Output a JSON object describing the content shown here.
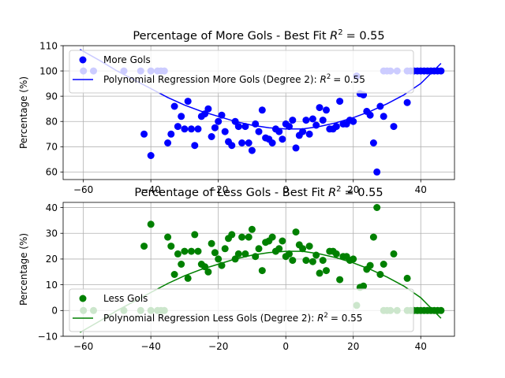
{
  "chart_data": [
    {
      "type": "scatter",
      "title": "Percentage of More Gols - Best Fit R² = 0.55",
      "title_main": "Percentage of More Gols - Best Fit ",
      "title_r2": "= 0.55",
      "xlabel": "",
      "ylabel": "Percentage (%)",
      "xlim": [
        -66,
        50
      ],
      "ylim": [
        57,
        110
      ],
      "xticks": [
        -60,
        -40,
        -20,
        0,
        20,
        40
      ],
      "yticks": [
        60,
        70,
        80,
        90,
        100,
        110
      ],
      "xtick_labels": [
        "−60",
        "−40",
        "−20",
        "0",
        "20",
        "40"
      ],
      "ytick_labels": [
        "60",
        "70",
        "80",
        "90",
        "100",
        "110"
      ],
      "grid": true,
      "legend_position": "top-left",
      "series": [
        {
          "name": "More Gols",
          "kind": "points",
          "color": "#0000ff",
          "points": [
            [
              -60,
              100
            ],
            [
              -57,
              100
            ],
            [
              -48,
              100
            ],
            [
              -43,
              100
            ],
            [
              -40,
              100
            ],
            [
              -38,
              100
            ],
            [
              -37,
              100
            ],
            [
              -36,
              100
            ],
            [
              -42,
              75
            ],
            [
              -40,
              66.5
            ],
            [
              -35,
              71.5
            ],
            [
              -34,
              75
            ],
            [
              -33,
              86
            ],
            [
              -32,
              78
            ],
            [
              -31,
              82
            ],
            [
              -30,
              77
            ],
            [
              -29,
              88
            ],
            [
              -28,
              77
            ],
            [
              -27,
              70.5
            ],
            [
              -26,
              77
            ],
            [
              -25,
              82
            ],
            [
              -24,
              83
            ],
            [
              -23,
              85
            ],
            [
              -22,
              74
            ],
            [
              -21,
              77.5
            ],
            [
              -20,
              80
            ],
            [
              -19,
              82.5
            ],
            [
              -18,
              76
            ],
            [
              -17,
              72
            ],
            [
              -16,
              70.5
            ],
            [
              -15,
              80
            ],
            [
              -14,
              78
            ],
            [
              -13,
              71.5
            ],
            [
              -12,
              78
            ],
            [
              -11,
              71.5
            ],
            [
              -10,
              68.5
            ],
            [
              -9,
              79
            ],
            [
              -8,
              76
            ],
            [
              -7,
              84.5
            ],
            [
              -6,
              73.5
            ],
            [
              -5,
              73
            ],
            [
              -4,
              71.5
            ],
            [
              -3,
              77
            ],
            [
              -2,
              76
            ],
            [
              -1,
              73
            ],
            [
              0,
              79
            ],
            [
              1,
              78
            ],
            [
              2,
              80.5
            ],
            [
              3,
              69.5
            ],
            [
              4,
              74.5
            ],
            [
              5,
              76
            ],
            [
              6,
              80.5
            ],
            [
              7,
              75
            ],
            [
              8,
              81
            ],
            [
              9,
              78.5
            ],
            [
              10,
              85.5
            ],
            [
              11,
              80.5
            ],
            [
              12,
              84.5
            ],
            [
              13,
              77
            ],
            [
              14,
              77
            ],
            [
              15,
              78
            ],
            [
              16,
              88
            ],
            [
              17,
              79
            ],
            [
              18,
              79
            ],
            [
              19,
              80.5
            ],
            [
              20,
              80
            ],
            [
              21,
              98
            ],
            [
              22,
              91
            ],
            [
              23,
              90.5
            ],
            [
              24,
              84
            ],
            [
              25,
              82.5
            ],
            [
              26,
              71.5
            ],
            [
              27,
              60
            ],
            [
              28,
              86
            ],
            [
              29,
              82
            ],
            [
              29,
              100
            ],
            [
              30,
              100
            ],
            [
              31,
              100
            ],
            [
              32,
              78
            ],
            [
              33,
              100
            ],
            [
              36,
              87.5
            ],
            [
              36,
              100
            ],
            [
              37,
              100
            ],
            [
              38,
              100
            ],
            [
              39,
              100
            ],
            [
              40,
              100
            ],
            [
              41,
              100
            ],
            [
              42,
              100
            ],
            [
              43,
              100
            ],
            [
              44,
              100
            ],
            [
              45,
              100
            ],
            [
              46,
              100
            ]
          ]
        },
        {
          "name": "Polynomial Regression More Gols (Degree 2): R² = 0.55",
          "name_main": "Polynomial Regression More Gols (Degree 2): ",
          "name_r2": "= 0.55",
          "kind": "line",
          "color": "#0000ff",
          "x": [
            -61,
            -55,
            -50,
            -45,
            -40,
            -35,
            -30,
            -25,
            -20,
            -15,
            -10,
            -5,
            0,
            5,
            10,
            15,
            20,
            25,
            30,
            35,
            40,
            46
          ],
          "y": [
            108.5,
            104,
            100,
            96.5,
            93,
            89.5,
            86.5,
            84,
            82,
            80,
            78.5,
            77.5,
            77,
            77,
            78,
            79.5,
            81.5,
            84,
            87,
            90.5,
            95,
            103
          ]
        }
      ]
    },
    {
      "type": "scatter",
      "title": "Percentage of Less Gols - Best Fit R² = 0.55",
      "title_main": "Percentage of Less Gols - Best Fit ",
      "title_r2": "= 0.55",
      "xlabel": "",
      "ylabel": "Percentage (%)",
      "xlim": [
        -66,
        50
      ],
      "ylim": [
        -10,
        42
      ],
      "xticks": [
        -60,
        -40,
        -20,
        0,
        20,
        40
      ],
      "yticks": [
        -10,
        0,
        10,
        20,
        30,
        40
      ],
      "xtick_labels": [
        "−60",
        "−40",
        "−20",
        "0",
        "20",
        "40"
      ],
      "ytick_labels": [
        "−10",
        "0",
        "10",
        "20",
        "30",
        "40"
      ],
      "grid": true,
      "legend_position": "bottom-left",
      "series": [
        {
          "name": "Less Gols",
          "kind": "points",
          "color": "#008000",
          "points": [
            [
              -60,
              0
            ],
            [
              -57,
              0
            ],
            [
              -48,
              0
            ],
            [
              -43,
              0
            ],
            [
              -40,
              0
            ],
            [
              -38,
              0
            ],
            [
              -37,
              0
            ],
            [
              -36,
              0
            ],
            [
              -42,
              25
            ],
            [
              -40,
              33.5
            ],
            [
              -35,
              28.5
            ],
            [
              -34,
              25
            ],
            [
              -33,
              14
            ],
            [
              -32,
              22
            ],
            [
              -31,
              18
            ],
            [
              -30,
              23
            ],
            [
              -29,
              12.5
            ],
            [
              -28,
              23
            ],
            [
              -27,
              29.5
            ],
            [
              -26,
              23
            ],
            [
              -25,
              18
            ],
            [
              -24,
              17
            ],
            [
              -23,
              15
            ],
            [
              -22,
              26
            ],
            [
              -21,
              22.5
            ],
            [
              -20,
              20
            ],
            [
              -19,
              17.5
            ],
            [
              -18,
              24
            ],
            [
              -17,
              28
            ],
            [
              -16,
              29.5
            ],
            [
              -15,
              20
            ],
            [
              -14,
              22
            ],
            [
              -13,
              28.5
            ],
            [
              -12,
              22
            ],
            [
              -11,
              28.5
            ],
            [
              -10,
              31.5
            ],
            [
              -9,
              21
            ],
            [
              -8,
              24
            ],
            [
              -7,
              15.5
            ],
            [
              -6,
              26.5
            ],
            [
              -5,
              27
            ],
            [
              -4,
              28.5
            ],
            [
              -3,
              23
            ],
            [
              -2,
              24
            ],
            [
              -1,
              27
            ],
            [
              0,
              21
            ],
            [
              1,
              22
            ],
            [
              2,
              19.5
            ],
            [
              3,
              30.5
            ],
            [
              4,
              25.5
            ],
            [
              5,
              24
            ],
            [
              6,
              19.5
            ],
            [
              7,
              25
            ],
            [
              8,
              19
            ],
            [
              9,
              21.5
            ],
            [
              10,
              14.5
            ],
            [
              11,
              19.5
            ],
            [
              12,
              15.5
            ],
            [
              13,
              23
            ],
            [
              14,
              23
            ],
            [
              15,
              22
            ],
            [
              16,
              12
            ],
            [
              17,
              21
            ],
            [
              18,
              21
            ],
            [
              19,
              19.5
            ],
            [
              20,
              20
            ],
            [
              21,
              2
            ],
            [
              22,
              9
            ],
            [
              23,
              9.5
            ],
            [
              24,
              16
            ],
            [
              25,
              17.5
            ],
            [
              26,
              28.5
            ],
            [
              27,
              40
            ],
            [
              28,
              14
            ],
            [
              29,
              18
            ],
            [
              29,
              0
            ],
            [
              30,
              0
            ],
            [
              31,
              0
            ],
            [
              32,
              22
            ],
            [
              33,
              0
            ],
            [
              36,
              12.5
            ],
            [
              36,
              0
            ],
            [
              37,
              0
            ],
            [
              38,
              0
            ],
            [
              39,
              0
            ],
            [
              40,
              0
            ],
            [
              41,
              0
            ],
            [
              42,
              0
            ],
            [
              43,
              0
            ],
            [
              44,
              0
            ],
            [
              45,
              0
            ],
            [
              46,
              0
            ]
          ]
        },
        {
          "name": "Polynomial Regression Less Gols (Degree 2): R² = 0.55",
          "name_main": "Polynomial Regression Less Gols (Degree 2): ",
          "name_r2": "= 0.55",
          "kind": "line",
          "color": "#008000",
          "x": [
            -61,
            -55,
            -50,
            -45,
            -40,
            -35,
            -30,
            -25,
            -20,
            -15,
            -10,
            -5,
            0,
            5,
            10,
            15,
            20,
            25,
            30,
            35,
            40,
            46
          ],
          "y": [
            -8.5,
            -4,
            0,
            3.5,
            7,
            10.5,
            13.5,
            16,
            18,
            20,
            21.5,
            22.5,
            23,
            23,
            22,
            20.5,
            18.5,
            16,
            13,
            9.5,
            5,
            -3
          ]
        }
      ]
    }
  ]
}
